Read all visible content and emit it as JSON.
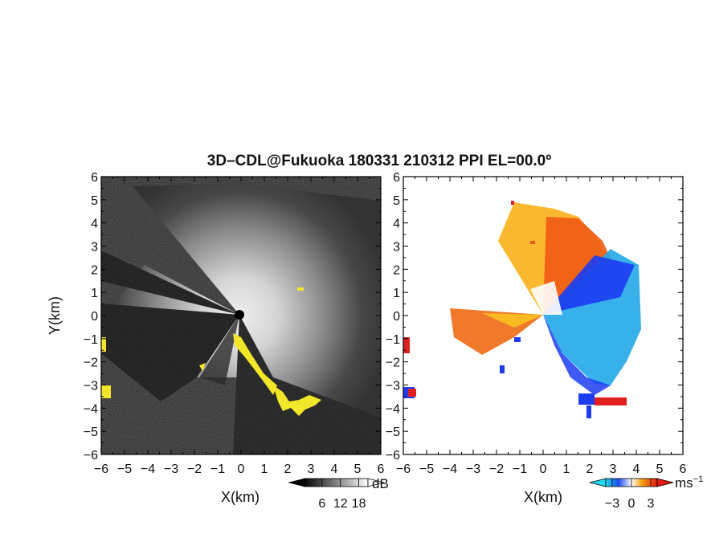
{
  "title": "3D–CDL@Fukuoka 180331 210312 PPI EL=00.0º",
  "colors": {
    "background": "#ffffff",
    "yellow_mask": "#f2e62a",
    "velocity_negative": "#1c3cf2",
    "velocity_zero": "#ffffff",
    "velocity_positive": "#f23a12"
  },
  "chart_data": [
    {
      "type": "heatmap",
      "name_hint": "SNR (intensity) PPI",
      "xlabel": "X(km)",
      "ylabel": "Y(km)",
      "xlim": [
        -6,
        6
      ],
      "ylim": [
        -6,
        6
      ],
      "xticks": [
        "−6",
        "−5",
        "−4",
        "−3",
        "−2",
        "−1",
        "0",
        "1",
        "2",
        "3",
        "4",
        "5",
        "6"
      ],
      "yticks": [
        "6",
        "5",
        "4",
        "3",
        "2",
        "1",
        "0",
        "−1",
        "−2",
        "−3",
        "−4",
        "−5",
        "−6"
      ],
      "colorbar": {
        "unit": "dB",
        "ticks": [
          "6",
          "12",
          "18"
        ],
        "range": [
          0,
          21
        ],
        "colormap": "grayscale (black → white)",
        "extend": "both"
      },
      "grid": false
    },
    {
      "type": "heatmap",
      "name_hint": "Doppler velocity PPI",
      "xlabel": "X(km)",
      "ylabel": "",
      "xlim": [
        -6,
        6
      ],
      "ylim": [
        -6,
        6
      ],
      "xticks": [
        "−6",
        "−5",
        "−4",
        "−3",
        "−2",
        "−1",
        "0",
        "1",
        "2",
        "3",
        "4",
        "5",
        "6"
      ],
      "yticks": [
        "6",
        "5",
        "4",
        "3",
        "2",
        "1",
        "0",
        "−1",
        "−2",
        "−3",
        "−4",
        "−5",
        "−6"
      ],
      "colorbar": {
        "unit": "ms",
        "unit_exponent": "−1",
        "ticks": [
          "−3",
          "0",
          "3"
        ],
        "range": [
          -4,
          4
        ],
        "colormap": "blue–cyan–white–yellow–orange–red",
        "extend": "both"
      },
      "grid": false
    }
  ]
}
